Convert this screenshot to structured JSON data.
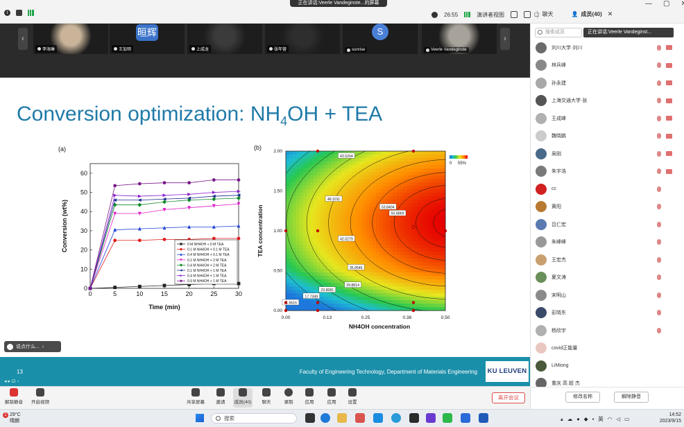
{
  "window": {
    "speaking_banner": "正在讲话:Veerle Vandeginste...的屏幕",
    "timer": "26:55",
    "view_label": "演讲者视图",
    "side_tabs": [
      {
        "label": "聊天",
        "active": false
      },
      {
        "label": "成员(40)",
        "active": true
      }
    ]
  },
  "video_strip": {
    "tiles": [
      {
        "name": "李海琳",
        "kind": "camera",
        "cam_color": "#c9b49a"
      },
      {
        "name": "王加明",
        "kind": "avatar",
        "avatar_text": "晅辉",
        "avatar_color": "#3a73c9"
      },
      {
        "name": "上成龙",
        "kind": "camera",
        "cam_color": "#3b3b3b"
      },
      {
        "name": "张年营",
        "kind": "camera",
        "cam_color": "#2e2e2e"
      },
      {
        "name": "sunrise",
        "kind": "avatar_round",
        "avatar_text": "S",
        "avatar_color": "#4a7fd6"
      },
      {
        "name": "Veerle Vandeginste",
        "kind": "camera",
        "cam_color": "#a8a39a"
      }
    ]
  },
  "slide": {
    "title_main": "Conversion optimization: NH",
    "title_sub": "4",
    "title_end": "OH + TEA",
    "page_number": "13",
    "faculty": "Faculty of Engineering Technology, Department of Materials Engineering",
    "logo": "KU LEUVEN",
    "chat_hint": "说点什么...",
    "footer_tools": "◂ ▸ ⊡ ▫"
  },
  "chart_data": [
    {
      "type": "line",
      "panel_label": "(a)",
      "xlabel": "Time (min)",
      "ylabel": "Conversion (wt%)",
      "xlim": [
        0,
        30
      ],
      "ylim": [
        0,
        65
      ],
      "xticks": [
        "0",
        "5",
        "10",
        "15",
        "20",
        "25",
        "30"
      ],
      "yticks": [
        "0",
        "10",
        "20",
        "30",
        "40",
        "50",
        "60"
      ],
      "x": [
        0,
        5,
        10,
        15,
        20,
        25,
        30
      ],
      "legend_position": "lower-right",
      "series": [
        {
          "name": "0 M NH4OH + 0 M TEA",
          "color": "#222222",
          "marker": "square",
          "values": [
            0,
            0.5,
            1,
            1.5,
            2,
            2.5,
            2.5
          ]
        },
        {
          "name": "0.1 M NH4OH + 0.1 M TEA",
          "color": "#e01b1b",
          "marker": "circle",
          "values": [
            0,
            25,
            25,
            25.5,
            25.5,
            26,
            26
          ]
        },
        {
          "name": "0.4 M NH4OH + 0.1 M TEA",
          "color": "#1f3fd9",
          "marker": "triangle-up",
          "values": [
            0,
            30.5,
            31,
            31.5,
            32,
            32,
            32.5
          ]
        },
        {
          "name": "0.1 M NH4OH + 2 M TEA",
          "color": "#e020c8",
          "marker": "triangle-down",
          "values": [
            0,
            39,
            39,
            41,
            42,
            43,
            44
          ]
        },
        {
          "name": "0.4 M NH4OH + 2 M TEA",
          "color": "#118a2a",
          "marker": "diamond",
          "values": [
            0,
            43.5,
            43.5,
            45,
            46,
            46.5,
            47
          ]
        },
        {
          "name": "0.1 M NH4OH + 1 M TEA",
          "color": "#1a2a8f",
          "marker": "triangle-left",
          "values": [
            0,
            46,
            46,
            46.5,
            47,
            48,
            48.5
          ]
        },
        {
          "name": "0.4 M NH4OH + 1 M TEA",
          "color": "#8a1fcf",
          "marker": "triangle-right",
          "values": [
            0,
            48.5,
            48,
            48.5,
            49,
            50,
            50.5
          ]
        },
        {
          "name": "0.9 M NH4OH + 1 M TEA",
          "color": "#7a1a8a",
          "marker": "circle",
          "values": [
            0,
            53.5,
            54.5,
            55,
            55,
            56.5,
            56.5
          ]
        }
      ]
    },
    {
      "type": "heatmap",
      "panel_label": "(b)",
      "xlabel": "NH4OH concentration",
      "ylabel": "TEA concentration",
      "xlim": [
        0,
        0.5
      ],
      "ylim": [
        0,
        2
      ],
      "xticks": [
        "0.00",
        "0.13",
        "0.25",
        "0.38",
        "0.50"
      ],
      "yticks": [
        "0.00",
        "0.50",
        "1.00",
        "1.50",
        "2.00"
      ],
      "colorbar": {
        "min_label": "0",
        "max_label": "55%"
      },
      "optimum": {
        "x": 0.5,
        "y": 1.1,
        "value": 56
      },
      "contours": [
        "11.6616",
        "17.7349",
        "23.8081",
        "29.8814",
        "35.9546",
        "42.0279",
        "48.1011",
        "53.8404",
        "43.5204",
        "50.8869"
      ],
      "design_points": [
        {
          "x": 0.0,
          "y": 0.0
        },
        {
          "x": 0.0,
          "y": 0.1
        },
        {
          "x": 0.0,
          "y": 1.0
        },
        {
          "x": 0.1,
          "y": 0.0
        },
        {
          "x": 0.1,
          "y": 0.1
        },
        {
          "x": 0.1,
          "y": 1.0
        },
        {
          "x": 0.1,
          "y": 2.0
        },
        {
          "x": 0.4,
          "y": 0.0
        },
        {
          "x": 0.4,
          "y": 0.1
        },
        {
          "x": 0.4,
          "y": 2.0
        },
        {
          "x": 0.5,
          "y": 1.0
        }
      ]
    }
  ],
  "toolbar": {
    "buttons": [
      {
        "label": "解除静音",
        "icon": "mic-muted-icon"
      },
      {
        "label": "开启视频",
        "icon": "video-icon"
      },
      {
        "label": "共享屏幕",
        "icon": "share-screen-icon"
      },
      {
        "label": "邀请",
        "icon": "invite-icon"
      },
      {
        "label": "成员(40)",
        "icon": "members-icon"
      },
      {
        "label": "聊天",
        "icon": "chat-icon"
      },
      {
        "label": "录制",
        "icon": "record-icon"
      },
      {
        "label": "应用",
        "icon": "apps-icon"
      },
      {
        "label": "应用",
        "icon": "apps2-icon"
      },
      {
        "label": "设置",
        "icon": "settings-icon"
      }
    ],
    "leave_label": "离开会议"
  },
  "participants_panel": {
    "search_placeholder": "搜索成员",
    "now_speaking": "正在讲话:Veerle Vandeginst...",
    "members": [
      {
        "name": "刘川大学·刘川",
        "avatar": "#6b6b6b",
        "mic": true,
        "cam": true
      },
      {
        "name": "林兵峰",
        "avatar": "#888888",
        "mic": true,
        "cam": true
      },
      {
        "name": "孙永建",
        "avatar": "#a8a8a8",
        "mic": true,
        "cam": true
      },
      {
        "name": "上海交通大学·张",
        "avatar": "#555555",
        "mic": true,
        "cam": true
      },
      {
        "name": "王成峰",
        "avatar": "#b0b0b0",
        "mic": true,
        "cam": true
      },
      {
        "name": "魏晓鹏",
        "avatar": "#cccccc",
        "mic": true,
        "cam": true
      },
      {
        "name": "吴刚",
        "avatar": "#4a6a8a",
        "mic": true,
        "cam": true
      },
      {
        "name": "朱宇浩",
        "avatar": "#7a7a7a",
        "mic": true,
        "cam": true
      },
      {
        "name": "cc",
        "avatar": "#d02020",
        "mic": true,
        "cam": false
      },
      {
        "name": "黄阳",
        "avatar": "#b87a30",
        "mic": true,
        "cam": false
      },
      {
        "name": "吕仁宏",
        "avatar": "#5a7ab0",
        "mic": true,
        "cam": false
      },
      {
        "name": "朱峰峰",
        "avatar": "#999999",
        "mic": true,
        "cam": false
      },
      {
        "name": "王宏杰",
        "avatar": "#c8a070",
        "mic": true,
        "cam": false
      },
      {
        "name": "夏文涛",
        "avatar": "#6b8f5a",
        "mic": true,
        "cam": false
      },
      {
        "name": "宋明山",
        "avatar": "#8a8a8a",
        "mic": true,
        "cam": false
      },
      {
        "name": "彭晓东",
        "avatar": "#3a4a6a",
        "mic": true,
        "cam": false
      },
      {
        "name": "杨欣宇",
        "avatar": "#b0b0b0",
        "mic": true,
        "cam": false
      },
      {
        "name": "covid正能量",
        "avatar": "#e8c8c0",
        "mic": false,
        "cam": false
      },
      {
        "name": "LiMiong",
        "avatar": "#4a5a3a",
        "mic": false,
        "cam": false
      },
      {
        "name": "重庆 高 超 杰",
        "avatar": "#666666",
        "mic": false,
        "cam": false
      }
    ],
    "rename_label": "修改名称",
    "mute_all_label": "解除静音"
  },
  "taskbar": {
    "weather_temp": "29°C",
    "weather_desc": "晴朗",
    "weather_badge": "1",
    "search_label": "搜索",
    "tray_text": "英",
    "time": "14:52",
    "date": "2023/9/15"
  }
}
